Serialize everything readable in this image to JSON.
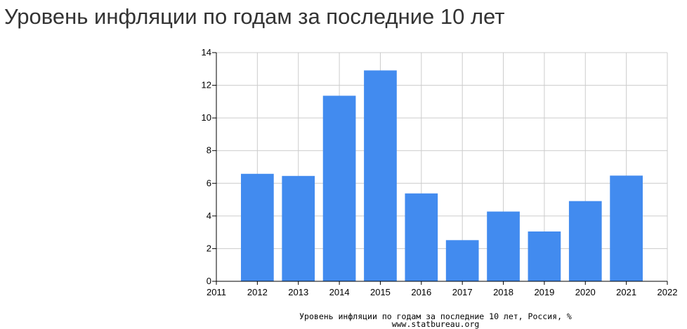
{
  "page": {
    "title": "Уровень инфляции по годам за последние 10 лет"
  },
  "chart_data": {
    "type": "bar",
    "x": [
      2012,
      2013,
      2014,
      2015,
      2016,
      2017,
      2018,
      2019,
      2020,
      2021
    ],
    "values": [
      6.58,
      6.45,
      11.36,
      12.91,
      5.38,
      2.52,
      4.27,
      3.05,
      4.91,
      6.47
    ],
    "xlim": [
      2011,
      2022
    ],
    "ylim": [
      0,
      14
    ],
    "x_ticks": [
      2011,
      2012,
      2013,
      2014,
      2015,
      2016,
      2017,
      2018,
      2019,
      2020,
      2021,
      2022
    ],
    "y_ticks": [
      0,
      2,
      4,
      6,
      8,
      10,
      12,
      14
    ],
    "grid": true,
    "bar_color": "#428bef",
    "grid_color": "#cccccc",
    "caption": "Уровень инфляции по годам за последние 10 лет, Россия, %",
    "source": "www.statbureau.org"
  }
}
